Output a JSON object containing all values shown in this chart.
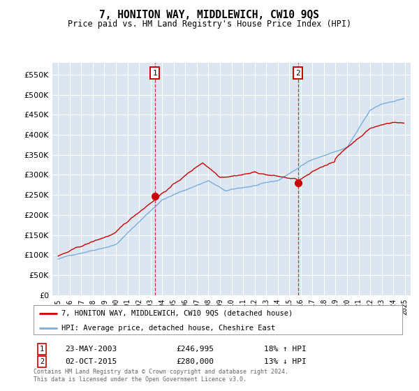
{
  "title": "7, HONITON WAY, MIDDLEWICH, CW10 9QS",
  "subtitle": "Price paid vs. HM Land Registry's House Price Index (HPI)",
  "ytick_values": [
    0,
    50000,
    100000,
    150000,
    200000,
    250000,
    300000,
    350000,
    400000,
    450000,
    500000,
    550000
  ],
  "ylim": [
    0,
    580000
  ],
  "xlim_start": 1994.5,
  "xlim_end": 2025.5,
  "background_color": "#ffffff",
  "plot_bg_color": "#dce6f1",
  "grid_color": "#ffffff",
  "red_line_color": "#cc0000",
  "blue_line_color": "#7aacdc",
  "marker1_year": 2003.38,
  "marker1_value": 246995,
  "marker2_year": 2015.75,
  "marker2_value": 280000,
  "marker1_date": "23-MAY-2003",
  "marker1_price": "£246,995",
  "marker1_hpi": "18% ↑ HPI",
  "marker2_date": "02-OCT-2015",
  "marker2_price": "£280,000",
  "marker2_hpi": "13% ↓ HPI",
  "legend_line1": "7, HONITON WAY, MIDDLEWICH, CW10 9QS (detached house)",
  "legend_line2": "HPI: Average price, detached house, Cheshire East",
  "footnote": "Contains HM Land Registry data © Crown copyright and database right 2024.\nThis data is licensed under the Open Government Licence v3.0."
}
